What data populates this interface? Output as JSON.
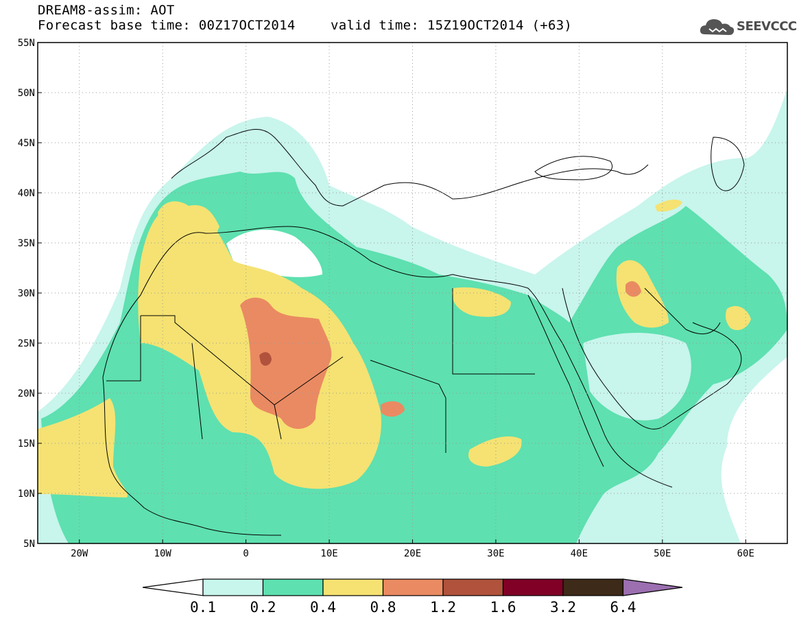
{
  "header": {
    "title_line1": "DREAM8-assim: AOT",
    "title_line2": "Forecast base time: 00Z17OCT2014",
    "valid_time": "valid time: 15Z19OCT2014 (+63)",
    "logo_text": "SEEVCCC",
    "logo_icon": "cloud-icon"
  },
  "map": {
    "lat_labels": [
      "55N",
      "50N",
      "45N",
      "40N",
      "35N",
      "30N",
      "25N",
      "20N",
      "15N",
      "10N",
      "5N"
    ],
    "lon_labels": [
      "20W",
      "10W",
      "0",
      "10E",
      "20E",
      "30E",
      "40E",
      "50E",
      "60E"
    ],
    "lat_range": [
      5,
      55
    ],
    "lon_range": [
      -25,
      65
    ],
    "grid": "dotted"
  },
  "colorbar": {
    "levels": [
      "0.1",
      "0.2",
      "0.4",
      "0.8",
      "1.2",
      "1.6",
      "3.2",
      "6.4"
    ],
    "colors": [
      "#ffffff",
      "#c8f5ec",
      "#5ee0b0",
      "#f5e272",
      "#ea8a62",
      "#b0523c",
      "#800026",
      "#3d2a18",
      "#9b6fb0"
    ]
  }
}
